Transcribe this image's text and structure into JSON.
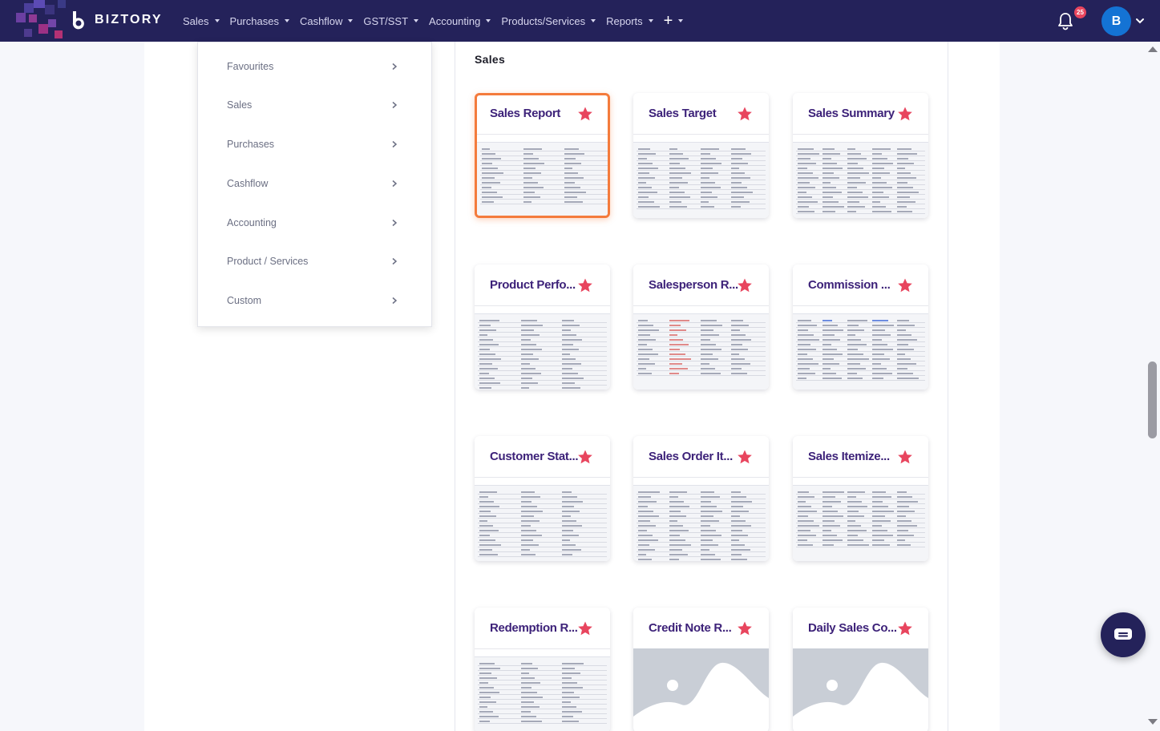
{
  "brand": {
    "name": "BIZTORY"
  },
  "nav": {
    "items": [
      {
        "label": "Sales",
        "id": "sales"
      },
      {
        "label": "Purchases",
        "id": "purchases"
      },
      {
        "label": "Cashflow",
        "id": "cashflow"
      },
      {
        "label": "GST/SST",
        "id": "gst-sst"
      },
      {
        "label": "Accounting",
        "id": "accounting"
      },
      {
        "label": "Products/Services",
        "id": "products-services"
      },
      {
        "label": "Reports",
        "id": "reports"
      }
    ],
    "notifications_count": "25",
    "avatar_initial": "B"
  },
  "menu": {
    "items": [
      {
        "label": "Favourites"
      },
      {
        "label": "Sales"
      },
      {
        "label": "Purchases"
      },
      {
        "label": "Cashflow"
      },
      {
        "label": "Accounting"
      },
      {
        "label": "Product / Services"
      },
      {
        "label": "Custom"
      }
    ]
  },
  "section": {
    "title": "Sales"
  },
  "reports": [
    {
      "title": "Sales Report",
      "favourite": true,
      "selected": true
    },
    {
      "title": "Sales Target",
      "favourite": true
    },
    {
      "title": "Sales Summary",
      "favourite": true
    },
    {
      "title": "Product Perfo...",
      "favourite": true
    },
    {
      "title": "Salesperson R...",
      "favourite": true
    },
    {
      "title": "Commission ...",
      "favourite": true
    },
    {
      "title": "Customer Stat...",
      "favourite": true
    },
    {
      "title": "Sales Order It...",
      "favourite": true
    },
    {
      "title": "Sales Itemize...",
      "favourite": true
    },
    {
      "title": "Redemption R...",
      "favourite": true
    },
    {
      "title": "Credit Note R...",
      "favourite": true
    },
    {
      "title": "Daily Sales Co...",
      "favourite": true
    }
  ],
  "colors": {
    "nav_bg": "#24225a",
    "card_title": "#3d2279",
    "star": "#e8455e",
    "selected_border": "#f47b3c",
    "avatar": "#1473d4"
  },
  "icons": [
    "bell-icon",
    "chevron-right-icon",
    "star-icon",
    "plus-icon",
    "chat-icon",
    "image-placeholder-icon"
  ]
}
